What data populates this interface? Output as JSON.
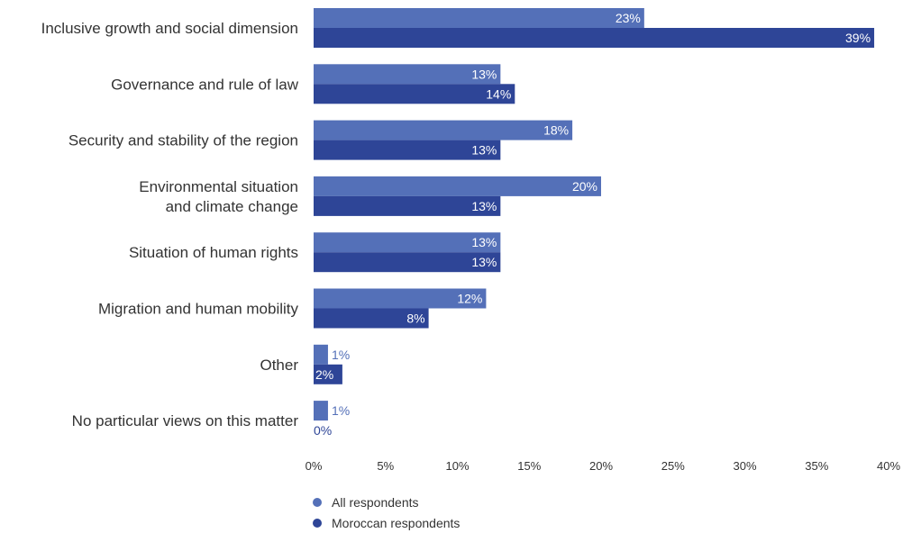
{
  "chart_data": {
    "type": "bar",
    "orientation": "horizontal",
    "categories": [
      [
        "Inclusive growth and social dimension"
      ],
      [
        "Governance and rule of law"
      ],
      [
        "Security and stability of the region"
      ],
      [
        "Environmental situation",
        "and climate change"
      ],
      [
        "Situation of human rights"
      ],
      [
        "Migration and human mobility"
      ],
      [
        "Other"
      ],
      [
        "No particular views on this matter"
      ]
    ],
    "series": [
      {
        "name": "All respondents",
        "color": "#5470b8",
        "values": [
          23,
          13,
          18,
          20,
          13,
          12,
          1,
          1
        ]
      },
      {
        "name": "Moroccan respondents",
        "color": "#2e4597",
        "values": [
          39,
          14,
          13,
          13,
          13,
          8,
          2,
          0
        ]
      }
    ],
    "value_suffix": "%",
    "xlim": [
      0,
      40
    ],
    "xticks": [
      "0%",
      "5%",
      "10%",
      "15%",
      "20%",
      "25%",
      "30%",
      "35%",
      "40%"
    ],
    "grid": false,
    "legend_position": "bottom"
  }
}
